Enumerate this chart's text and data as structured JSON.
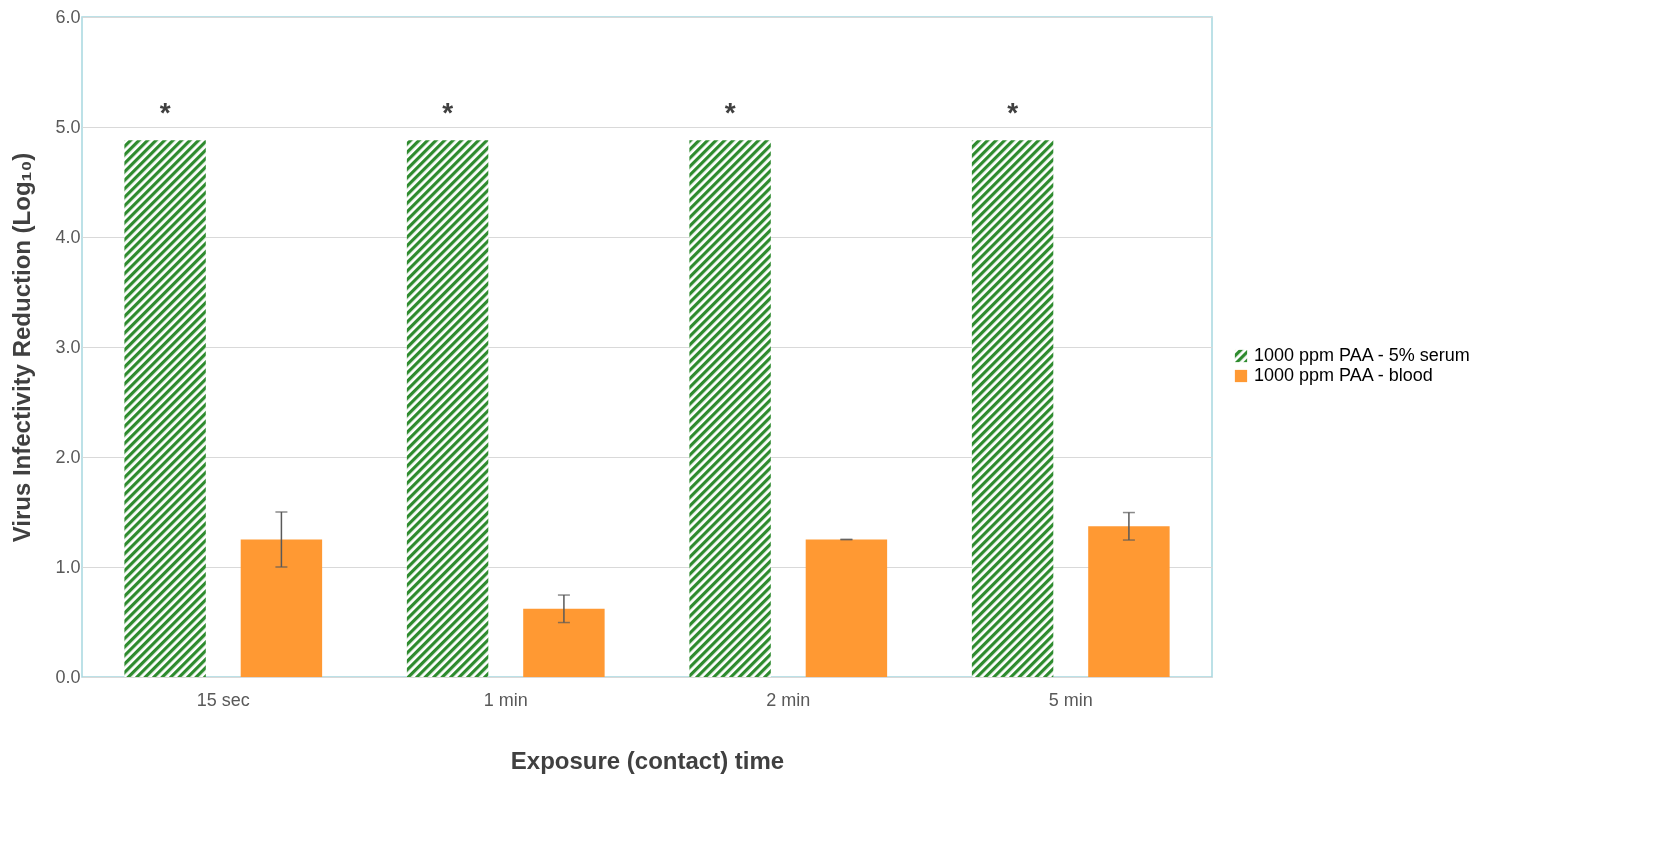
{
  "chart_data": {
    "type": "bar",
    "xlabel": "Exposure (contact) time",
    "ylabel": "Virus Infectivity Reduction (Log₁₀)",
    "categories": [
      "15 sec",
      "1 min",
      "2 min",
      "5 min"
    ],
    "series": [
      {
        "name": "1000 ppm PAA - 5% serum",
        "color": "#2e8b2e",
        "values": [
          4.88,
          4.88,
          4.88,
          4.88
        ]
      },
      {
        "name": "1000 ppm PAA - blood",
        "color": "#ff9933",
        "values": [
          1.25,
          0.62,
          1.25,
          1.37
        ],
        "errors": [
          0.25,
          0.125,
          0,
          0.125
        ]
      }
    ],
    "annotations": [
      "*",
      "*",
      "*",
      "*"
    ],
    "ylim": [
      0,
      6
    ],
    "yticks": [
      {
        "value": 0,
        "label": "0.0"
      },
      {
        "value": 1,
        "label": "1.0"
      },
      {
        "value": 2,
        "label": "2.0"
      },
      {
        "value": 3,
        "label": "3.0"
      },
      {
        "value": 4,
        "label": "4.0"
      },
      {
        "value": 5,
        "label": "5.0"
      },
      {
        "value": 6,
        "label": "6.0"
      }
    ],
    "grid": "y",
    "legend": "right"
  }
}
